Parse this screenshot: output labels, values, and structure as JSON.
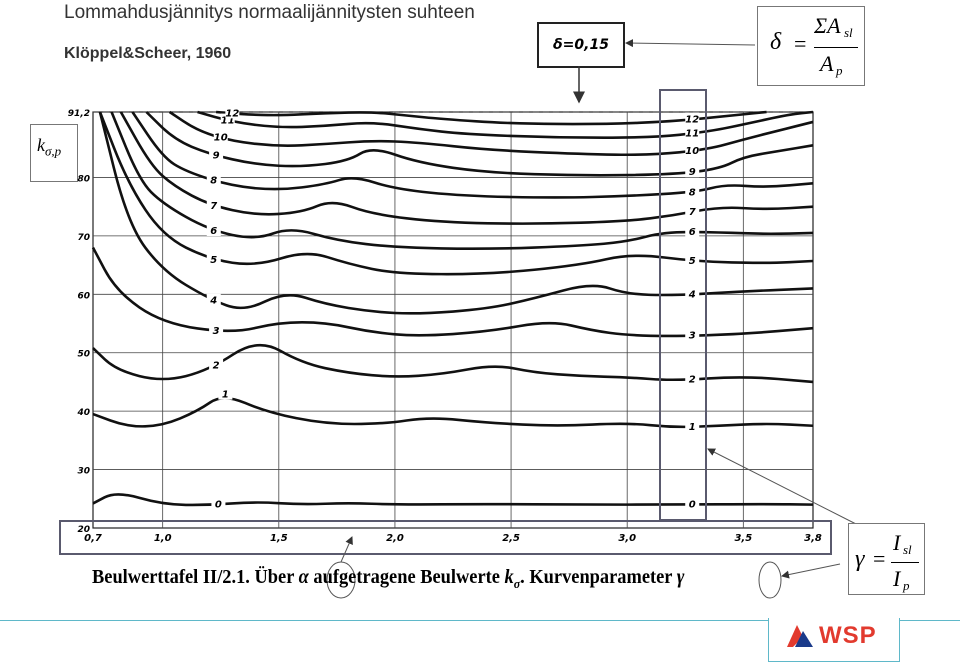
{
  "header": {
    "title": "Lommahdusjännitys normaalijännitysten suhteen",
    "subtitle": "Klöppel&Scheer, 1960"
  },
  "annotations": {
    "delta_value": "δ=0,15",
    "delta_formula": {
      "lhs": "δ",
      "eq": "=",
      "num": "ΣA",
      "num_sub": "sl",
      "den": "A",
      "den_sub": "p"
    },
    "gamma_formula": {
      "lhs": "γ",
      "eq": "=",
      "num": "I",
      "num_sub": "sl",
      "den": "I",
      "den_sub": "p"
    },
    "ylabel_k": "k",
    "ylabel_sub": "σ,p"
  },
  "caption": {
    "part1": "Beulwerttafel II/2.1. Über ",
    "alpha": "α",
    "part2": " aufgetragene Beulwerte ",
    "k": "k",
    "k_sub": "σ",
    "part3": ". Kurvenparameter ",
    "gamma": "γ"
  },
  "logo": {
    "text": "WSP"
  },
  "colors": {
    "accent_line": "#5fb8c9",
    "logo_red": "#e23a2e",
    "logo_blue": "#1a3a8a",
    "frame": "#5a5a6e"
  },
  "chart_data": {
    "type": "line",
    "title": "",
    "xlabel": "α",
    "ylabel": "kσ,p",
    "xlim": [
      0.7,
      3.8
    ],
    "ylim": [
      20,
      91.2
    ],
    "x_ticks": [
      {
        "v": 0.7,
        "label": "0,7"
      },
      {
        "v": 1.0,
        "label": "1,0"
      },
      {
        "v": 1.5,
        "label": "1,5"
      },
      {
        "v": 2.0,
        "label": "2,0"
      },
      {
        "v": 2.5,
        "label": "2,5"
      },
      {
        "v": 3.0,
        "label": "3,0"
      },
      {
        "v": 3.5,
        "label": "3,5"
      },
      {
        "v": 3.8,
        "label": "3,8"
      }
    ],
    "y_ticks": [
      {
        "v": 20,
        "label": "20"
      },
      {
        "v": 30,
        "label": "30"
      },
      {
        "v": 40,
        "label": "40"
      },
      {
        "v": 50,
        "label": "50"
      },
      {
        "v": 60,
        "label": "60"
      },
      {
        "v": 70,
        "label": "70"
      },
      {
        "v": 80,
        "label": "80"
      },
      {
        "v": 91.2,
        "label": "91,2"
      }
    ],
    "grid": true,
    "series": [
      {
        "name": "0",
        "x": [
          0.7,
          0.8,
          1.0,
          1.2,
          1.4,
          1.6,
          1.8,
          2.0,
          2.4,
          2.8,
          3.2,
          3.6,
          3.8
        ],
        "y": [
          24.2,
          26.3,
          24.0,
          23.9,
          24.5,
          24.0,
          24.3,
          24.0,
          24.1,
          24.0,
          24.0,
          24.1,
          24.0
        ],
        "label_at": 1.24
      },
      {
        "name": "1",
        "x": [
          0.7,
          0.85,
          1.0,
          1.15,
          1.26,
          1.45,
          1.7,
          1.95,
          2.15,
          2.4,
          2.7,
          3.0,
          3.2,
          3.4,
          3.6,
          3.8
        ],
        "y": [
          39.5,
          37.3,
          37.5,
          40.0,
          43.0,
          39.8,
          37.8,
          37.8,
          39.0,
          38.0,
          37.4,
          38.0,
          37.2,
          37.5,
          37.9,
          37.5
        ],
        "label_at": 1.27
      },
      {
        "name": "2",
        "x": [
          0.7,
          0.8,
          1.0,
          1.2,
          1.41,
          1.6,
          1.8,
          2.0,
          2.2,
          2.43,
          2.6,
          2.8,
          3.0,
          3.2,
          3.5,
          3.8
        ],
        "y": [
          50.8,
          47.0,
          45.0,
          47.0,
          52.5,
          48.2,
          46.5,
          45.8,
          46.3,
          48.0,
          46.6,
          46.0,
          45.8,
          45.2,
          46.0,
          45.0
        ],
        "label_at": 1.23
      },
      {
        "name": "3",
        "x": [
          0.7,
          0.8,
          1.0,
          1.3,
          1.5,
          1.7,
          1.9,
          2.1,
          2.4,
          2.67,
          2.85,
          3.0,
          3.2,
          3.5,
          3.8
        ],
        "y": [
          68.0,
          60.5,
          55.0,
          53.3,
          55.2,
          55.2,
          53.5,
          52.8,
          53.6,
          55.5,
          53.8,
          53.0,
          52.8,
          53.2,
          54.2
        ],
        "label_at": 1.23
      },
      {
        "name": "4",
        "x": [
          0.73,
          0.85,
          1.0,
          1.2,
          1.35,
          1.53,
          1.7,
          1.9,
          2.1,
          2.4,
          2.6,
          2.85,
          3.0,
          3.2,
          3.5,
          3.8
        ],
        "y": [
          91.2,
          72.0,
          64.0,
          59.2,
          57.0,
          60.5,
          58.3,
          57.0,
          56.6,
          57.5,
          59.3,
          62.0,
          60.0,
          59.8,
          60.5,
          61.0
        ],
        "label_at": 1.22
      },
      {
        "name": "5",
        "x": [
          0.73,
          0.85,
          1.0,
          1.2,
          1.4,
          1.62,
          1.8,
          2.0,
          2.4,
          2.8,
          3.02,
          3.3,
          3.6,
          3.8
        ],
        "y": [
          91.2,
          79.0,
          70.0,
          66.0,
          64.8,
          67.5,
          65.2,
          63.5,
          63.4,
          65.0,
          67.0,
          65.6,
          65.3,
          65.7
        ],
        "label_at": 1.22
      },
      {
        "name": "6",
        "x": [
          0.78,
          0.9,
          1.0,
          1.2,
          1.4,
          1.55,
          1.75,
          2.0,
          2.4,
          2.8,
          3.0,
          3.16,
          3.4,
          3.6,
          3.8
        ],
        "y": [
          91.2,
          79.5,
          75.5,
          71.0,
          69.3,
          71.5,
          69.2,
          68.0,
          67.7,
          68.3,
          69.0,
          70.7,
          70.6,
          70.3,
          70.5
        ],
        "label_at": 1.22
      },
      {
        "name": "7",
        "x": [
          0.82,
          0.95,
          1.05,
          1.2,
          1.4,
          1.6,
          1.73,
          1.9,
          2.2,
          2.6,
          3.0,
          3.2,
          3.4,
          3.6,
          3.8
        ],
        "y": [
          91.2,
          82.0,
          78.5,
          75.3,
          73.5,
          74.0,
          76.2,
          73.7,
          72.3,
          72.0,
          72.5,
          73.5,
          75.0,
          74.5,
          75.0
        ],
        "label_at": 1.22
      },
      {
        "name": "8",
        "x": [
          0.87,
          1.0,
          1.1,
          1.3,
          1.5,
          1.7,
          1.82,
          2.0,
          2.3,
          2.7,
          3.0,
          3.3,
          3.42,
          3.6,
          3.8
        ],
        "y": [
          91.2,
          83.5,
          81.0,
          78.5,
          77.8,
          78.8,
          80.3,
          78.0,
          76.8,
          76.5,
          76.8,
          77.5,
          78.8,
          78.3,
          79.0
        ],
        "label_at": 1.22
      },
      {
        "name": "9",
        "x": [
          0.93,
          1.05,
          1.2,
          1.4,
          1.6,
          1.8,
          1.9,
          2.1,
          2.4,
          2.8,
          3.2,
          3.4,
          3.5,
          3.65,
          3.8
        ],
        "y": [
          91.2,
          86.5,
          84.0,
          82.2,
          81.8,
          82.8,
          85.3,
          82.5,
          80.8,
          80.3,
          80.5,
          81.5,
          83.5,
          84.5,
          85.5
        ],
        "label_at": 1.23
      },
      {
        "name": "10",
        "x": [
          1.03,
          1.15,
          1.3,
          1.5,
          1.7,
          1.9,
          2.1,
          2.4,
          2.8,
          3.1,
          3.35,
          3.5,
          3.65,
          3.8
        ],
        "y": [
          91.2,
          88.0,
          86.2,
          85.3,
          85.7,
          86.3,
          86.0,
          84.7,
          84.0,
          83.8,
          84.8,
          86.5,
          88.0,
          89.5
        ],
        "label_at": 1.25
      },
      {
        "name": "11",
        "x": [
          1.15,
          1.3,
          1.5,
          1.7,
          1.9,
          2.1,
          2.3,
          2.7,
          3.1,
          3.35,
          3.55,
          3.7,
          3.8
        ],
        "y": [
          91.2,
          89.5,
          88.5,
          88.8,
          89.5,
          88.3,
          87.4,
          86.8,
          86.8,
          87.8,
          89.5,
          90.8,
          91.2
        ],
        "label_at": 1.28
      },
      {
        "name": "12",
        "x": [
          1.23,
          1.35,
          1.5,
          1.7,
          1.9,
          2.05,
          2.2,
          2.5,
          2.9,
          3.2,
          3.45,
          3.6
        ],
        "y": [
          91.2,
          90.8,
          90.6,
          91.0,
          91.2,
          90.6,
          90.0,
          89.2,
          89.1,
          89.6,
          90.6,
          91.2
        ],
        "label_at": 1.3
      }
    ],
    "right_labels_at": 3.28
  }
}
